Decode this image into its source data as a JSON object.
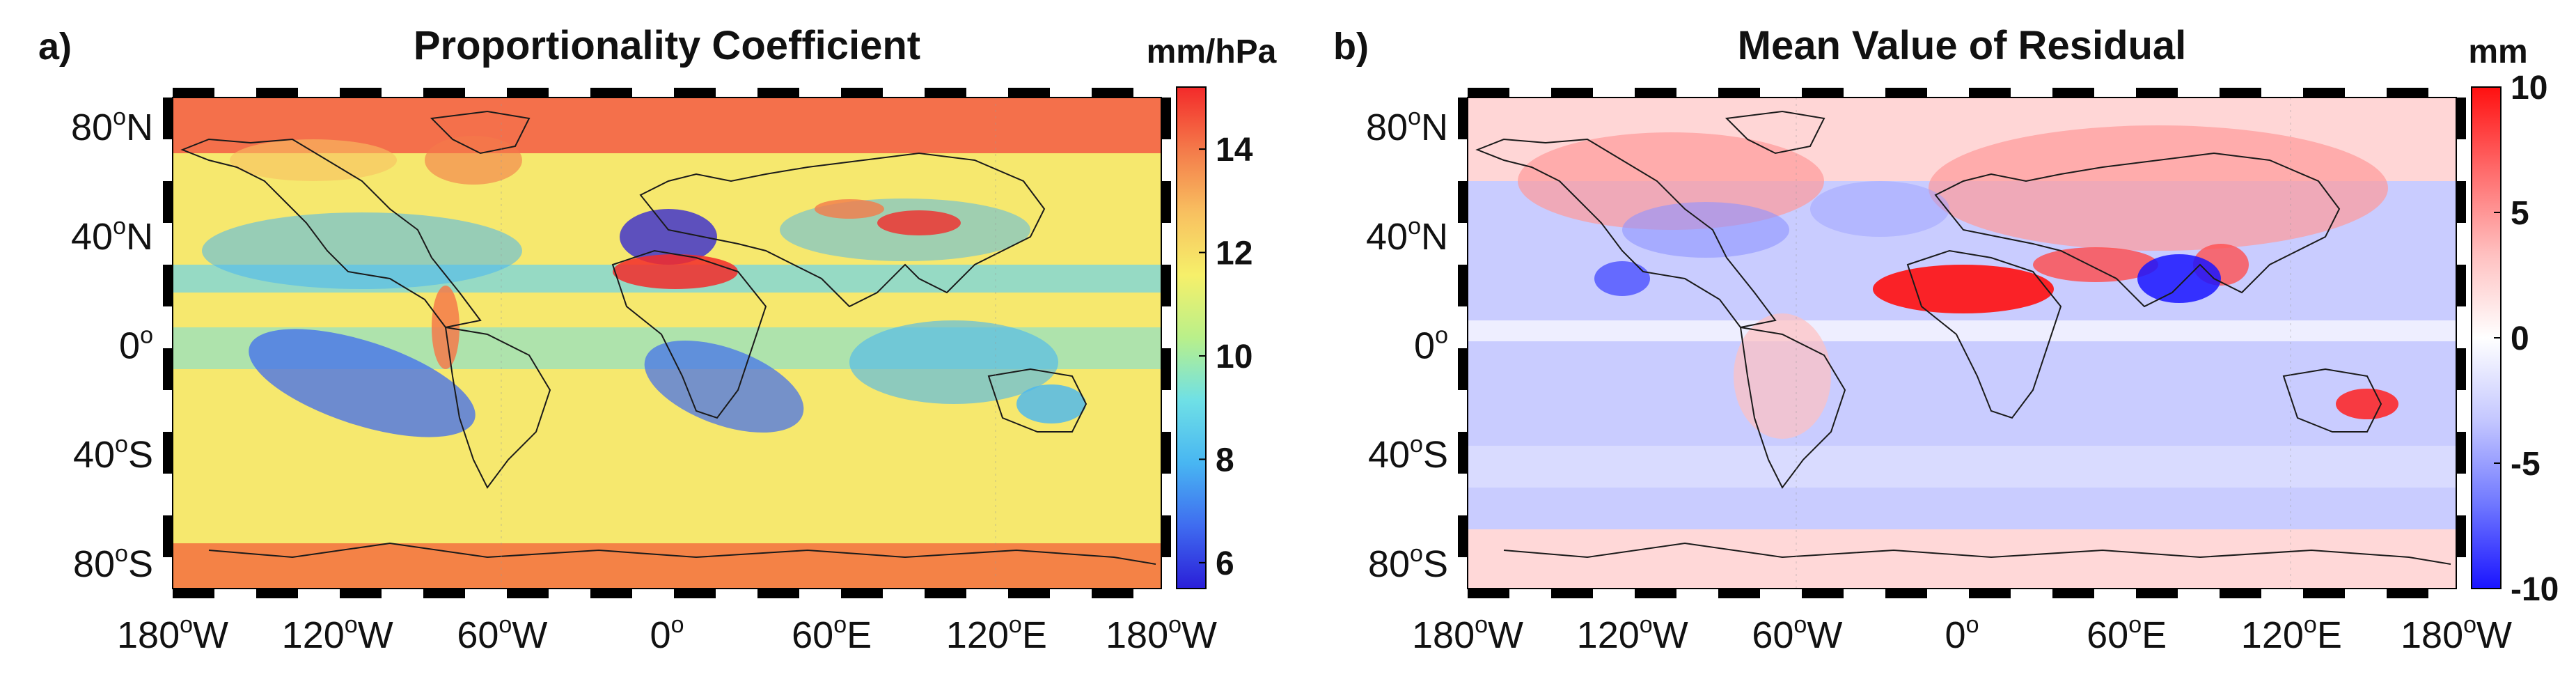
{
  "panels": [
    {
      "letter": "a)",
      "title": "Proportionality Coefficient",
      "units": "mm/hPa",
      "colorbar": {
        "stops": [
          "#2a1ed8",
          "#3f6cf0",
          "#48b6f2",
          "#6fe0e6",
          "#b9f08a",
          "#f6f06a",
          "#f8c060",
          "#f47a4a",
          "#f32a2a"
        ],
        "ticks": [
          "14",
          "12",
          "10",
          "8",
          "6"
        ],
        "tick_values": [
          14,
          12,
          10,
          8,
          6
        ],
        "range": [
          5.5,
          15.2
        ]
      }
    },
    {
      "letter": "b)",
      "title": "Mean Value of Residual",
      "units": "mm",
      "colorbar": {
        "stops": [
          "#1a14ff",
          "#6f77ff",
          "#c3c6ff",
          "#ffffff",
          "#ffc0c0",
          "#ff6b6b",
          "#ff1010"
        ],
        "ticks": [
          "10",
          "5",
          "0",
          "-5",
          "-10"
        ],
        "tick_values": [
          10,
          5,
          0,
          -5,
          -10
        ],
        "range": [
          -10,
          10
        ]
      }
    }
  ],
  "axes": {
    "lat_labels": [
      "80",
      "40",
      "0",
      "40",
      "80"
    ],
    "lat_suffix": [
      "N",
      "N",
      "",
      "S",
      "S"
    ],
    "lat_values": [
      80,
      40,
      0,
      -40,
      -80
    ],
    "lon_labels": [
      "180",
      "120",
      "60",
      "0",
      "60",
      "120",
      "180"
    ],
    "lon_suffix": [
      "W",
      "W",
      "W",
      "",
      "E",
      "E",
      "W"
    ],
    "lon_values": [
      -180,
      -120,
      -60,
      0,
      60,
      120,
      180
    ],
    "degree_symbol": "o"
  },
  "colors": {
    "frame": "#000000",
    "coast": "#1a1a1a"
  }
}
